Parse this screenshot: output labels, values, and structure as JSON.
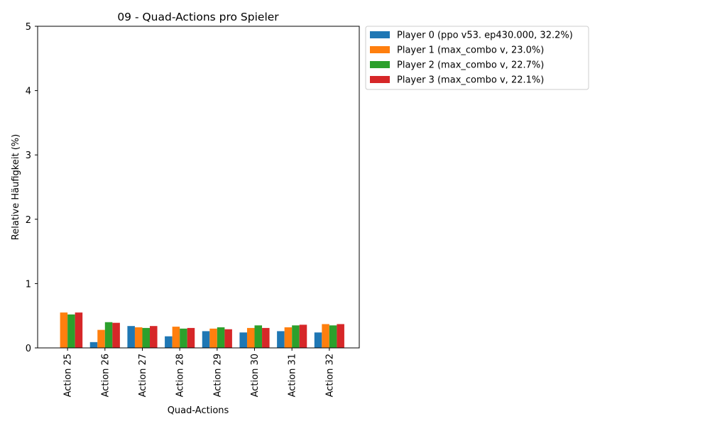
{
  "chart_data": {
    "type": "bar",
    "title": "09 - Quad-Actions pro Spieler",
    "xlabel": "Quad-Actions",
    "ylabel": "Relative Häufigkeit (%)",
    "ylim": [
      0,
      5
    ],
    "yticks": [
      0,
      1,
      2,
      3,
      4,
      5
    ],
    "grid": false,
    "legend_placement": "outside-top-right",
    "categories": [
      "Action 25",
      "Action 26",
      "Action 27",
      "Action 28",
      "Action 29",
      "Action 30",
      "Action 31",
      "Action 32"
    ],
    "series": [
      {
        "name": "Player 0 (ppo v53. ep430.000, 32.2%)",
        "color": "#1f77b4",
        "values": [
          0.0,
          0.09,
          0.34,
          0.18,
          0.26,
          0.24,
          0.26,
          0.24
        ]
      },
      {
        "name": "Player 1 (max_combo v, 23.0%)",
        "color": "#ff7f0e",
        "values": [
          0.55,
          0.28,
          0.32,
          0.33,
          0.3,
          0.31,
          0.32,
          0.37
        ]
      },
      {
        "name": "Player 2 (max_combo v, 22.7%)",
        "color": "#2ca02c",
        "values": [
          0.52,
          0.4,
          0.31,
          0.3,
          0.32,
          0.35,
          0.35,
          0.35
        ]
      },
      {
        "name": "Player 3 (max_combo v, 22.1%)",
        "color": "#d62728",
        "values": [
          0.55,
          0.39,
          0.34,
          0.31,
          0.29,
          0.31,
          0.36,
          0.37
        ]
      }
    ]
  }
}
